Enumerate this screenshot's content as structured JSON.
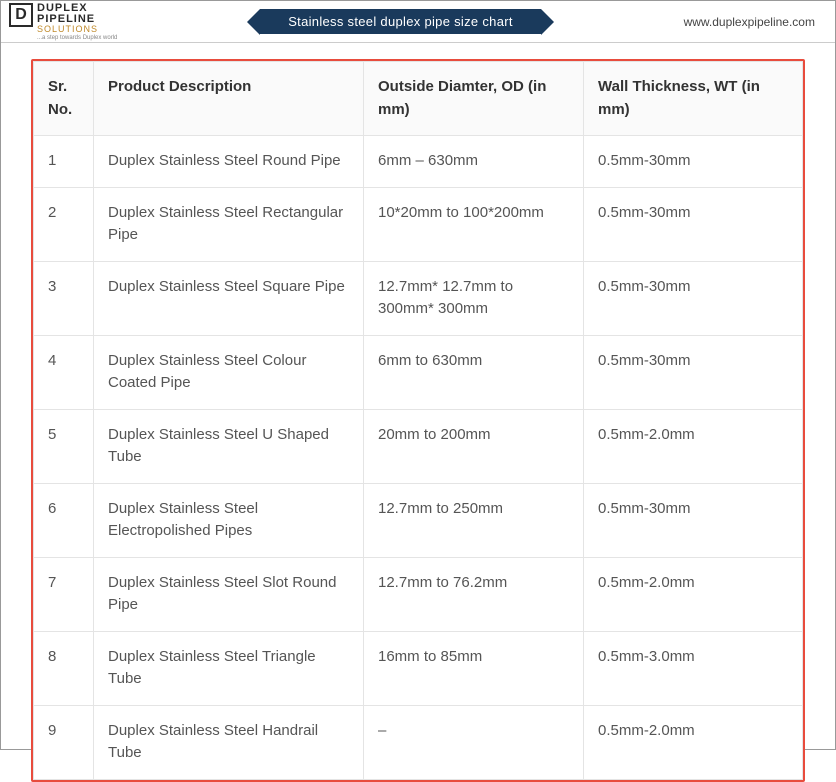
{
  "header": {
    "logo": {
      "mark": "D",
      "line1": "DUPLEX",
      "line2": "PIPELINE",
      "line3": "SOLUTIONS",
      "tagline": "...a step towards Duplex world"
    },
    "title": "Stainless steel duplex pipe size chart",
    "url": "www.duplexpipeline.com"
  },
  "table": {
    "columns": [
      "Sr. No.",
      "Product Description",
      "Outside Diamter, OD (in mm)",
      "Wall Thickness, WT (in mm)"
    ],
    "rows": [
      [
        "1",
        "Duplex Stainless Steel Round Pipe",
        "6mm – 630mm",
        "0.5mm-30mm"
      ],
      [
        "2",
        "Duplex Stainless Steel Rectangular Pipe",
        "10*20mm to 100*200mm",
        "0.5mm-30mm"
      ],
      [
        "3",
        "Duplex Stainless Steel Square Pipe",
        "12.7mm* 12.7mm to 300mm* 300mm",
        "0.5mm-30mm"
      ],
      [
        "4",
        "Duplex Stainless Steel Colour Coated Pipe",
        "6mm to 630mm",
        "0.5mm-30mm"
      ],
      [
        "5",
        "Duplex Stainless Steel U Shaped Tube",
        "20mm to 200mm",
        "0.5mm-2.0mm"
      ],
      [
        "6",
        "Duplex Stainless Steel Electropolished Pipes",
        "12.7mm to 250mm",
        "0.5mm-30mm"
      ],
      [
        "7",
        "Duplex Stainless Steel Slot Round Pipe",
        "12.7mm to 76.2mm",
        "0.5mm-2.0mm"
      ],
      [
        "8",
        "Duplex Stainless Steel Triangle Tube",
        "16mm to 85mm",
        "0.5mm-3.0mm"
      ],
      [
        "9",
        "Duplex Stainless Steel Handrail Tube",
        "–",
        "0.5mm-2.0mm"
      ]
    ]
  },
  "styling": {
    "ribbon_bg": "#1a3a5c",
    "ribbon_text": "#ffffff",
    "table_border": "#e84c3d",
    "cell_border": "#e4e4e4",
    "header_bg": "#fafafa",
    "header_text": "#333333",
    "body_text": "#555555",
    "logo_accent": "#c08a2a",
    "font_size_header": 15,
    "font_size_body": 15
  }
}
